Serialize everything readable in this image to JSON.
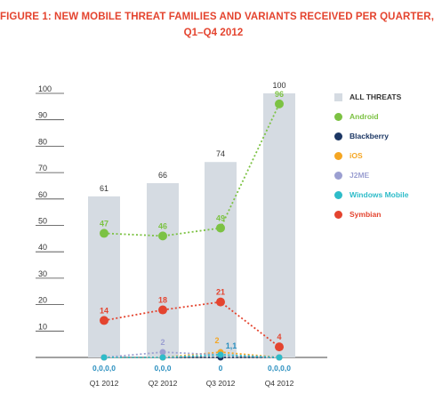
{
  "title": {
    "line1": "FIGURE 1: NEW MOBILE THREAT FAMILIES AND VARIANTS RECEIVED PER QUARTER,",
    "line2": "Q1–Q4 2012"
  },
  "chart_data": {
    "type": "bar",
    "categories": [
      "Q1 2012",
      "Q2 2012",
      "Q3 2012",
      "Q4 2012"
    ],
    "ylim": [
      0,
      100
    ],
    "yticks": [
      "100",
      "90",
      "80",
      "70",
      "60",
      "50",
      "40",
      "30",
      "20",
      "10"
    ],
    "grid": false,
    "legend_position": "right",
    "series": [
      {
        "name": "ALL THREATS",
        "kind": "bar",
        "color": "#d5dbe2",
        "values": [
          61,
          66,
          74,
          100
        ],
        "labels": [
          "61",
          "66",
          "74",
          "100"
        ],
        "label_color": "#333333"
      },
      {
        "name": "Android",
        "kind": "line",
        "color": "#7cc243",
        "values": [
          47,
          46,
          49,
          96
        ],
        "labels": [
          "47",
          "46",
          "49",
          "96"
        ],
        "label_color": "#7cc243"
      },
      {
        "name": "Blackberry",
        "kind": "line",
        "color": "#1c3764",
        "values": [
          0,
          0,
          0,
          0
        ],
        "labels": [],
        "label_color": "#1c3764"
      },
      {
        "name": "iOS",
        "kind": "line",
        "color": "#f5a623",
        "values": [
          0,
          0,
          2,
          0
        ],
        "labels": [
          "",
          "",
          "2",
          ""
        ],
        "label_color": "#f5a623"
      },
      {
        "name": "J2ME",
        "kind": "line",
        "color": "#9b9fd1",
        "values": [
          0,
          2,
          1,
          0
        ],
        "labels": [
          "",
          "2",
          "",
          ""
        ],
        "label_color": "#9b9fd1"
      },
      {
        "name": "Windows Mobile",
        "kind": "line",
        "color": "#2ebcc9",
        "values": [
          0,
          0,
          1,
          0
        ],
        "labels": [
          "",
          "",
          "1,1",
          ""
        ],
        "label_color": "#2a8fbf"
      },
      {
        "name": "Symbian",
        "kind": "line",
        "color": "#e4442f",
        "values": [
          14,
          18,
          21,
          4
        ],
        "labels": [
          "14",
          "18",
          "21",
          "4"
        ],
        "label_color": "#e4442f"
      }
    ],
    "bottom_labels": [
      "0,0,0,0",
      "0,0,0",
      "0",
      "0,0,0,0"
    ]
  }
}
